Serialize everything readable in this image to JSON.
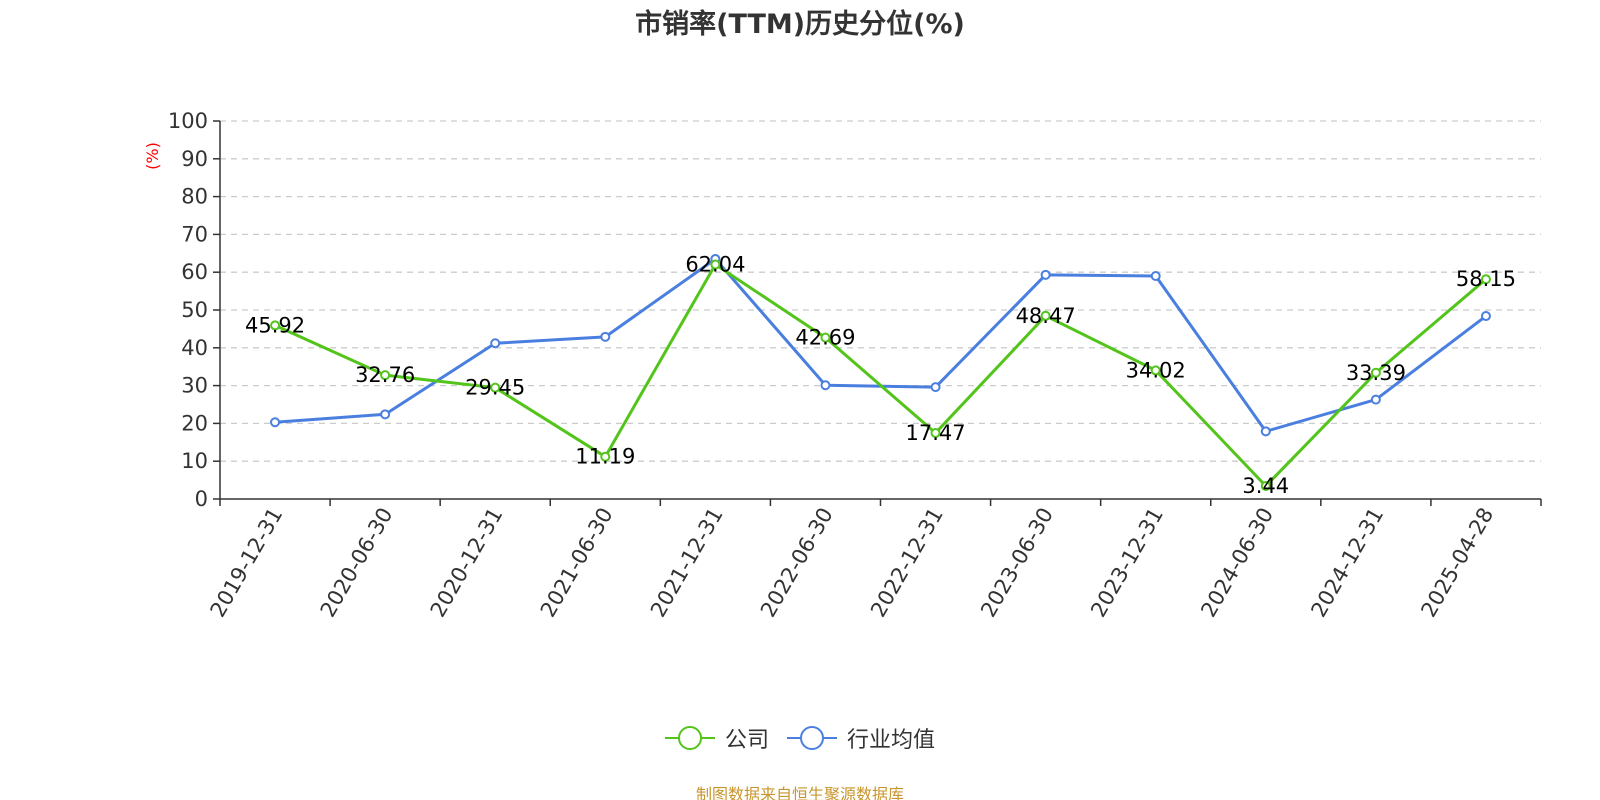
{
  "title": "市销率(TTM)历史分位(%)",
  "unit_label": "(%)",
  "source": "制图数据来自恒生聚源数据库",
  "colors": {
    "company": "#52c41a",
    "industry": "#4a7fe0",
    "unit": "#ff0000",
    "source": "#c8962e",
    "grid": "#cccccc",
    "axis": "#333333"
  },
  "legend": [
    {
      "label": "公司",
      "color": "#52c41a"
    },
    {
      "label": "行业均值",
      "color": "#4a7fe0"
    }
  ],
  "chart_data": {
    "type": "line",
    "title": "市销率(TTM)历史分位(%)",
    "xlabel": "",
    "ylabel": "(%)",
    "ylim": [
      0,
      100
    ],
    "yticks": [
      0,
      10,
      20,
      30,
      40,
      50,
      60,
      70,
      80,
      90,
      100
    ],
    "grid": true,
    "legend_position": "bottom",
    "categories": [
      "2019-12-31",
      "2020-06-30",
      "2020-12-31",
      "2021-06-30",
      "2021-12-31",
      "2022-06-30",
      "2022-12-31",
      "2023-06-30",
      "2023-12-31",
      "2024-06-30",
      "2024-12-31",
      "2025-04-28"
    ],
    "series": [
      {
        "name": "公司",
        "color": "#52c41a",
        "values": [
          45.92,
          32.76,
          29.45,
          11.19,
          62.04,
          42.69,
          17.47,
          48.47,
          34.02,
          3.44,
          33.39,
          58.15
        ],
        "labels": [
          "45.92",
          "32.76",
          "29.45",
          "11.19",
          "62.04",
          "42.69",
          "17.47",
          "48.47",
          "34.02",
          "3.44",
          "33.39",
          "58.15"
        ]
      },
      {
        "name": "行业均值",
        "color": "#4a7fe0",
        "values": [
          20.3,
          22.4,
          41.2,
          42.9,
          63.5,
          30.1,
          29.6,
          59.3,
          59.0,
          17.9,
          26.3,
          48.4
        ]
      }
    ]
  }
}
